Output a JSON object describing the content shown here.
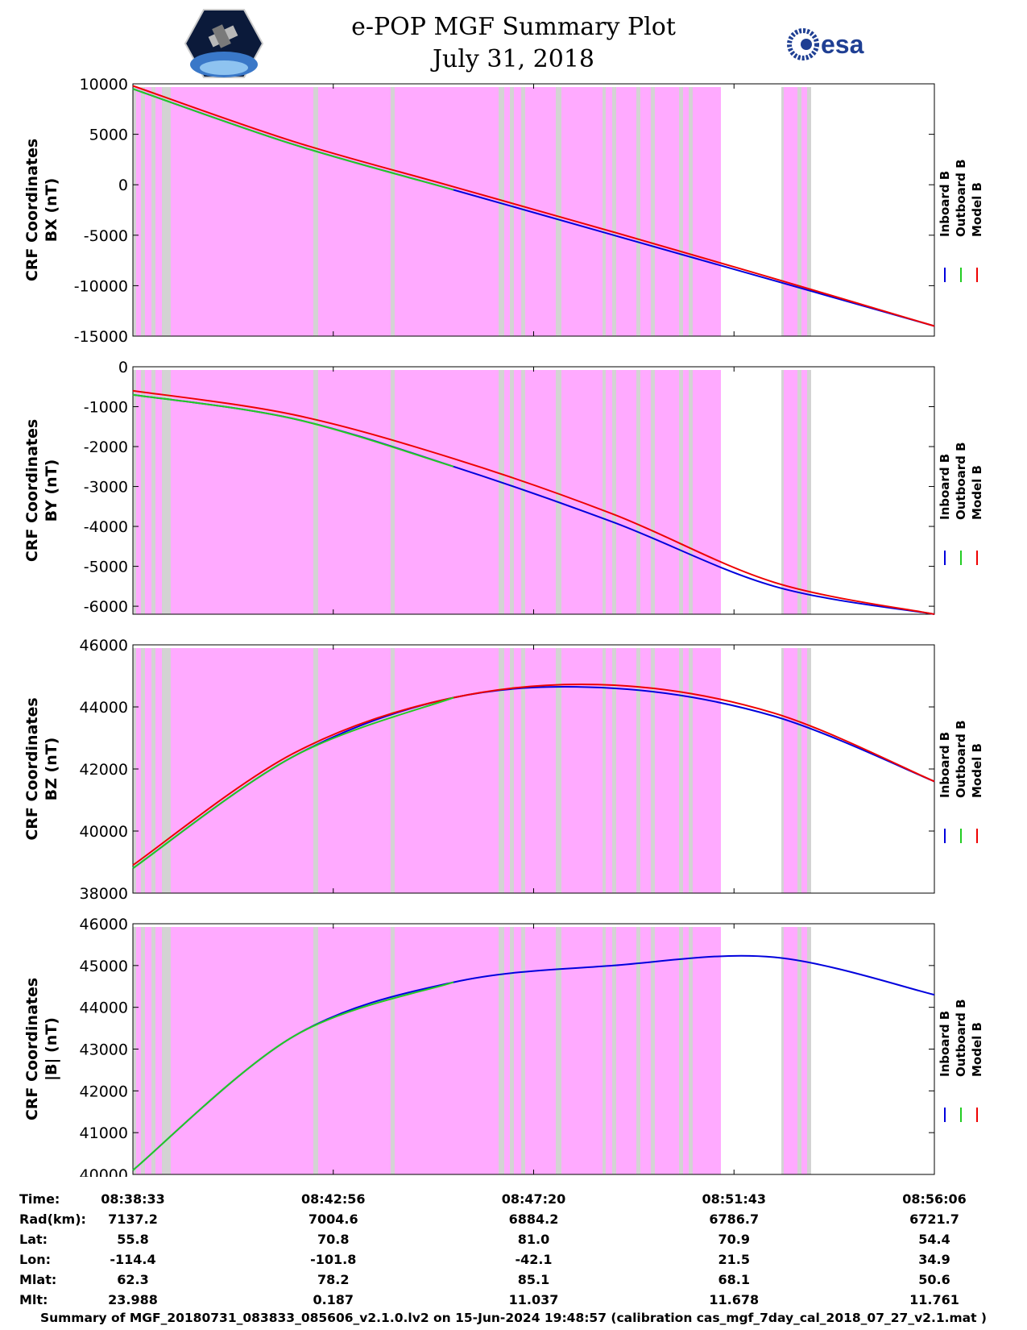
{
  "title": {
    "line1": "e-POP MGF Summary Plot",
    "line2": "July 31, 2018"
  },
  "logos": {
    "left": "cassiope-mission-logo",
    "right_text": "esa"
  },
  "colors": {
    "inboard": "#0000dd",
    "outboard": "#22cc22",
    "model": "#ee0000",
    "magenta": "#ffaaff",
    "gray": "#d3d3d3"
  },
  "chart_data": [
    {
      "type": "line",
      "ylabel_line1": "CRF Coordinates",
      "ylabel_line2": "BX (nT)",
      "ylim": [
        -15000,
        10000
      ],
      "yticks": [
        "10000",
        "5000",
        "0",
        "-5000",
        "-10000",
        "-15000"
      ],
      "ytick_values": [
        10000,
        5000,
        0,
        -5000,
        -10000,
        -15000
      ],
      "legend": [
        "Inboard B",
        "Outboard B",
        "Model B"
      ],
      "x": [
        0,
        0.2,
        0.4,
        0.6,
        0.8,
        1.0
      ],
      "series": [
        {
          "name": "Inboard B",
          "values": [
            9500,
            4000,
            -500,
            -5000,
            -9500,
            -14000
          ]
        },
        {
          "name": "Model B",
          "values": [
            9800,
            4300,
            -200,
            -4700,
            -9300,
            -14000
          ]
        }
      ]
    },
    {
      "type": "line",
      "ylabel_line1": "CRF Coordinates",
      "ylabel_line2": "BY (nT)",
      "ylim": [
        -6200,
        0
      ],
      "yticks": [
        "0",
        "-1000",
        "-2000",
        "-3000",
        "-4000",
        "-5000",
        "-6000"
      ],
      "ytick_values": [
        0,
        -1000,
        -2000,
        -3000,
        -4000,
        -5000,
        -6000
      ],
      "legend": [
        "Inboard B",
        "Outboard B",
        "Model B"
      ],
      "x": [
        0,
        0.2,
        0.4,
        0.6,
        0.8,
        1.0
      ],
      "series": [
        {
          "name": "Inboard B",
          "values": [
            -700,
            -1300,
            -2500,
            -3900,
            -5500,
            -6200
          ]
        },
        {
          "name": "Model B",
          "values": [
            -600,
            -1200,
            -2300,
            -3700,
            -5400,
            -6200
          ]
        }
      ]
    },
    {
      "type": "line",
      "ylabel_line1": "CRF Coordinates",
      "ylabel_line2": "BZ (nT)",
      "ylim": [
        38000,
        46000
      ],
      "yticks": [
        "46000",
        "44000",
        "42000",
        "40000",
        "38000"
      ],
      "ytick_values": [
        46000,
        44000,
        42000,
        40000,
        38000
      ],
      "legend": [
        "Inboard B",
        "Outboard B",
        "Model B"
      ],
      "x": [
        0,
        0.2,
        0.4,
        0.6,
        0.8,
        1.0
      ],
      "series": [
        {
          "name": "Inboard B",
          "values": [
            38800,
            42400,
            44300,
            44600,
            43700,
            41600
          ]
        },
        {
          "name": "Model B",
          "values": [
            38900,
            42500,
            44300,
            44700,
            43800,
            41600
          ]
        }
      ]
    },
    {
      "type": "line",
      "ylabel_line1": "CRF Coordinates",
      "ylabel_line2": "|B| (nT)",
      "ylim": [
        40000,
        46000
      ],
      "yticks": [
        "46000",
        "45000",
        "44000",
        "43000",
        "42000",
        "41000",
        "40000"
      ],
      "ytick_values": [
        46000,
        45000,
        44000,
        43000,
        42000,
        41000,
        40000
      ],
      "legend": [
        "Inboard B",
        "Outboard B",
        "Model B"
      ],
      "x": [
        0,
        0.2,
        0.4,
        0.6,
        0.8,
        1.0
      ],
      "series": [
        {
          "name": "Inboard B",
          "values": [
            40100,
            43300,
            44600,
            45000,
            45200,
            44300
          ]
        }
      ]
    }
  ],
  "table": {
    "labels": [
      "Time:",
      "Rad(km):",
      "Lat:",
      "Lon:",
      "Mlat:",
      "Mlt:"
    ],
    "columns": [
      {
        "time": "08:38:33",
        "rad": "7137.2",
        "lat": "55.8",
        "lon": "-114.4",
        "mlat": "62.3",
        "mlt": "23.988"
      },
      {
        "time": "08:42:56",
        "rad": "7004.6",
        "lat": "70.8",
        "lon": "-101.8",
        "mlat": "78.2",
        "mlt": "0.187"
      },
      {
        "time": "08:47:20",
        "rad": "6884.2",
        "lat": "81.0",
        "lon": "-42.1",
        "mlat": "85.1",
        "mlt": "11.037"
      },
      {
        "time": "08:51:43",
        "rad": "6786.7",
        "lat": "70.9",
        "lon": "21.5",
        "mlat": "68.1",
        "mlt": "11.678"
      },
      {
        "time": "08:56:06",
        "rad": "6721.7",
        "lat": "54.4",
        "lon": "34.9",
        "mlat": "50.6",
        "mlt": "11.761"
      }
    ]
  },
  "footer": "Summary of MGF_20180731_083833_085606_v2.1.0.lv2 on 15-Jun-2024 19:48:57 (calibration cas_mgf_7day_cal_2018_07_27_v2.1.mat )"
}
